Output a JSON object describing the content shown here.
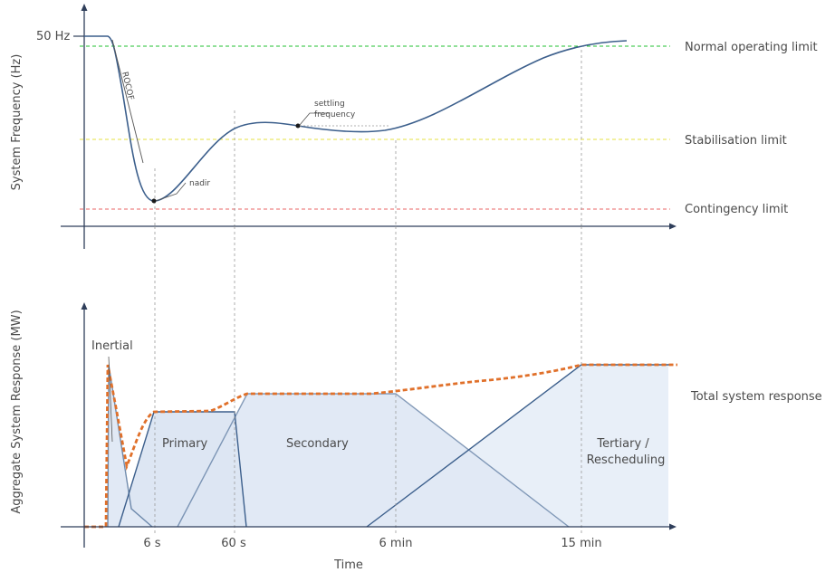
{
  "top_chart": {
    "y_axis_title": "System Frequency (Hz)",
    "y_tick_label": "50 Hz",
    "limits": [
      {
        "label": "Normal operating limit",
        "color": "#22c232"
      },
      {
        "label": "Stabilisation limit",
        "color": "#e6e040"
      },
      {
        "label": "Contingency limit",
        "color": "#e86464"
      }
    ],
    "annotations": {
      "rocof": "ROCOF",
      "nadir": "nadir",
      "settling_line1": "settling",
      "settling_line2": "frequency"
    }
  },
  "bottom_chart": {
    "y_axis_title": "Aggregate System Response (MW)",
    "x_axis_title": "Time",
    "x_ticks": [
      "6 s",
      "60 s",
      "6 min",
      "15 min"
    ],
    "areas": {
      "inertial": "Inertial",
      "primary": "Primary",
      "secondary": "Secondary",
      "tertiary_line1": "Tertiary /",
      "tertiary_line2": "Rescheduling"
    },
    "total_label": "Total system response",
    "colors": {
      "area_fill": "#e4ecf7",
      "area_line": "#3c5f8c",
      "total": "#e0702a"
    }
  }
}
